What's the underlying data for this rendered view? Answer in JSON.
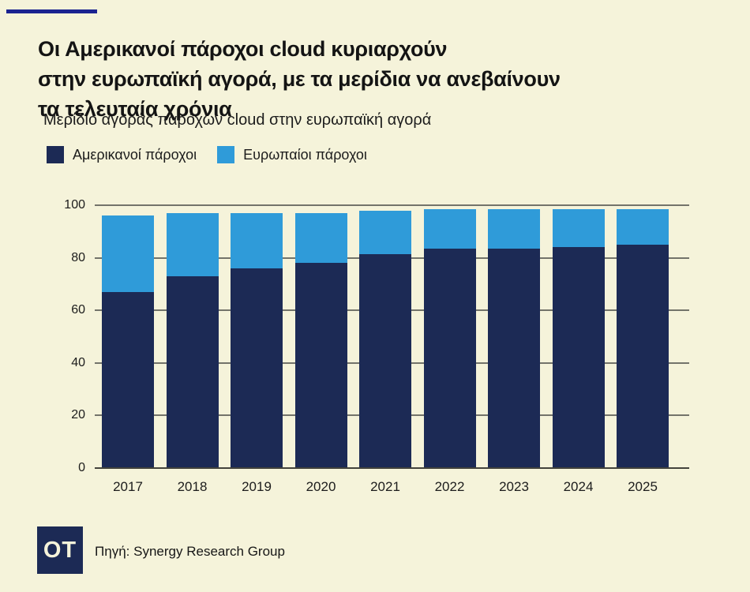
{
  "colors": {
    "background": "#f5f3da",
    "navy": "#1c2a55",
    "light_blue": "#2f9bd9",
    "top_rule": "#1b2390",
    "gridline": "#73736a",
    "axis_line": "#43433c"
  },
  "header": {
    "title": "Οι Αμερικανοί πάροχοι cloud κυριαρχούν\nστην ευρωπαϊκή αγορά, με τα μερίδια να ανεβαίνουν\nτα τελευταία χρόνια",
    "subtitle": "Μερίδιο αγοράς παρόχων cloud στην ευρωπαϊκή αγορά"
  },
  "legend": [
    {
      "label": "Αμερικανοί πάροχοι",
      "color": "#1c2a55"
    },
    {
      "label": "Ευρωπαίοι πάροχοι",
      "color": "#2f9bd9"
    }
  ],
  "chart_data": {
    "type": "bar",
    "stacked": true,
    "title": "Μερίδιο αγοράς παρόχων cloud στην ευρωπαϊκή αγορά",
    "categories": [
      "2017",
      "2018",
      "2019",
      "2020",
      "2021",
      "2022",
      "2023",
      "2024",
      "2025"
    ],
    "series": [
      {
        "name": "Αμερικανοί πάροχοι",
        "color": "#1c2a55",
        "values": [
          67,
          73,
          76,
          78,
          81.5,
          83.5,
          83.5,
          84,
          85
        ]
      },
      {
        "name": "Ευρωπαίοι πάροχοι",
        "color": "#2f9bd9",
        "values": [
          29,
          24,
          21,
          19,
          16.5,
          15,
          15,
          14.5,
          13.5
        ]
      }
    ],
    "xlabel": "",
    "ylabel": "",
    "ylim": [
      0,
      100
    ],
    "y_ticks": [
      0,
      20,
      40,
      60,
      80,
      100
    ],
    "grid": true,
    "legend_position": "top"
  },
  "footer": {
    "logo_text": "OT",
    "source": "Πηγή: Synergy Research Group"
  }
}
